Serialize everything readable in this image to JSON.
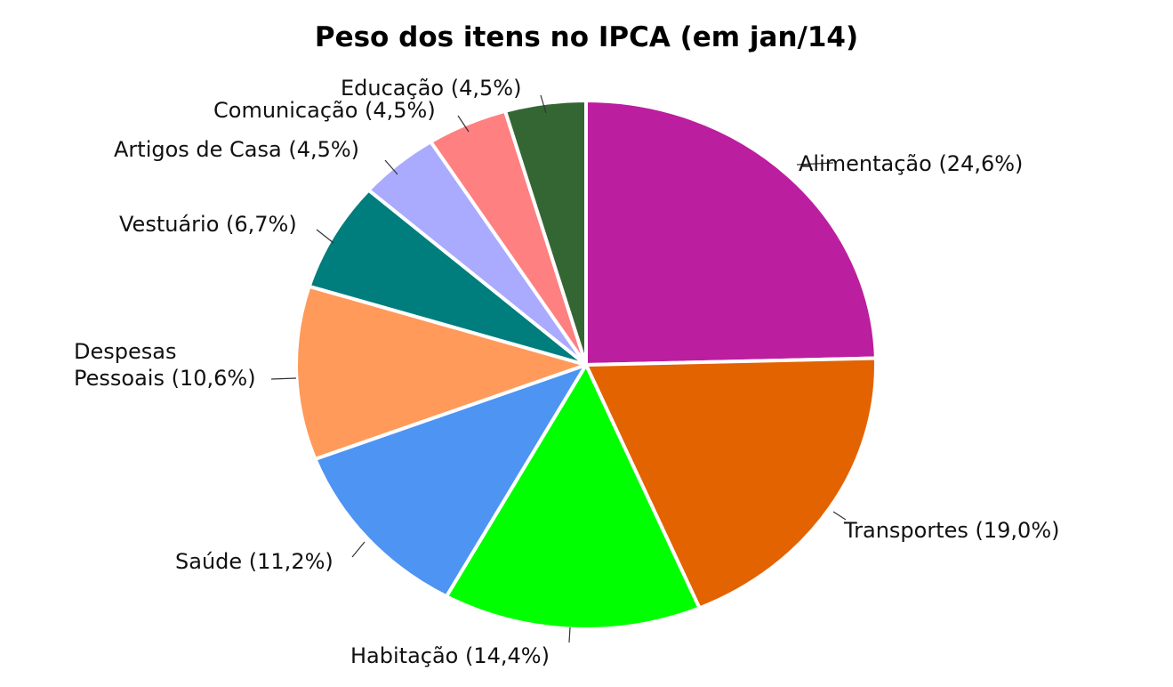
{
  "chart_data": {
    "type": "pie",
    "title": "Peso dos itens no IPCA (em jan/14)",
    "slices": [
      {
        "label": "Alimentação",
        "value": 24.6,
        "label_text": "Alimentação (24,6%)",
        "color": "#BB1E9F"
      },
      {
        "label": "Transportes",
        "value": 19.0,
        "label_text": "Transportes (19,0%)",
        "color": "#E36300"
      },
      {
        "label": "Habitação",
        "value": 14.4,
        "label_text": "Habitação (14,4%)",
        "color": "#00FF00"
      },
      {
        "label": "Saúde",
        "value": 11.2,
        "label_text": "Saúde (11,2%)",
        "color": "#4D94F3"
      },
      {
        "label": "Despesas Pessoais",
        "value": 10.6,
        "label_text": "Despesas Pessoais (10,6%)",
        "label_lines": [
          "Despesas",
          "Pessoais (10,6%)"
        ],
        "color": "#FF9A5A"
      },
      {
        "label": "Vestuário",
        "value": 6.7,
        "label_text": "Vestuário (6,7%)",
        "color": "#007D7D"
      },
      {
        "label": "Artigos de Casa",
        "value": 4.5,
        "label_text": "Artigos de Casa (4,5%)",
        "color": "#AAAAFF"
      },
      {
        "label": "Comunicação",
        "value": 4.5,
        "label_text": "Comunicação (4,5%)",
        "color": "#FF8080"
      },
      {
        "label": "Educação",
        "value": 4.5,
        "label_text": "Educação (4,5%)",
        "color": "#336633"
      }
    ]
  }
}
